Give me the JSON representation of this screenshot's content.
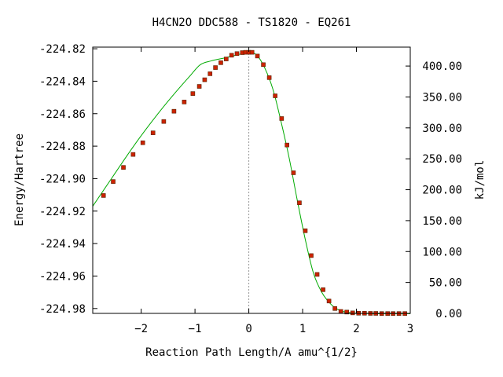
{
  "chart_data": {
    "type": "line",
    "title": "H4CN2O   DDC588 - TS1820 - EQ261",
    "xlabel": "Reaction Path Length/A amu^{1/2}",
    "ylabel": "Energy/Hartree",
    "y2label": "kJ/mol",
    "xlim": [
      -2.9,
      3.0
    ],
    "ylim": [
      -224.983,
      -224.819
    ],
    "y2lim": [
      0.0,
      430.6
    ],
    "grid": false,
    "x_ticks": [
      -2,
      -1,
      0,
      1,
      2,
      3
    ],
    "x_tick_labels": [
      "−2",
      "−1",
      "0",
      "1",
      "2",
      "3"
    ],
    "y_ticks": [
      -224.82,
      -224.84,
      -224.86,
      -224.88,
      -224.9,
      -224.92,
      -224.94,
      -224.96,
      -224.98
    ],
    "y_tick_labels": [
      "-224.82",
      "-224.84",
      "-224.86",
      "-224.88",
      "-224.90",
      "-224.92",
      "-224.94",
      "-224.96",
      "-224.98"
    ],
    "y2_ticks": [
      0,
      50,
      100,
      150,
      200,
      250,
      300,
      350,
      400
    ],
    "y2_tick_labels": [
      "0.00",
      "50.00",
      "100.00",
      "150.00",
      "200.00",
      "250.00",
      "300.00",
      "350.00",
      "400.00"
    ],
    "ts_marker_x": 0.0,
    "colors": {
      "line": "#00aa00",
      "points": "#cc2200",
      "point_border": "#552200",
      "marker": "#999999"
    },
    "curve": {
      "x": [
        -2.9,
        -2.7,
        -2.5,
        -2.3,
        -2.1,
        -1.9,
        -1.7,
        -1.5,
        -1.3,
        -1.1,
        -0.9,
        -0.7,
        -0.5,
        -0.3,
        -0.15,
        0.0,
        0.15,
        0.3,
        0.45,
        0.6,
        0.75,
        0.9,
        1.05,
        1.2,
        1.35,
        1.5,
        1.65,
        1.8,
        2.0,
        2.3,
        2.6,
        3.0
      ],
      "y": [
        -224.917,
        -224.9072,
        -224.8974,
        -224.8876,
        -224.8781,
        -224.8691,
        -224.8605,
        -224.8523,
        -224.8445,
        -224.837,
        -224.8298,
        -224.8275,
        -224.826,
        -224.8245,
        -224.8232,
        -224.8222,
        -224.824,
        -224.8321,
        -224.8452,
        -224.865,
        -224.8873,
        -224.9132,
        -224.9376,
        -224.9581,
        -224.9697,
        -224.9765,
        -224.9805,
        -224.9822,
        -224.9829,
        -224.9832,
        -224.9832,
        -224.9832
      ]
    },
    "points": {
      "x": [
        -2.7,
        -2.52,
        -2.33,
        -2.15,
        -1.97,
        -1.78,
        -1.58,
        -1.39,
        -1.2,
        -1.04,
        -0.92,
        -0.82,
        -0.72,
        -0.62,
        -0.52,
        -0.42,
        -0.32,
        -0.22,
        -0.12,
        -0.06,
        0.0,
        0.06,
        0.16,
        0.27,
        0.38,
        0.49,
        0.61,
        0.71,
        0.83,
        0.94,
        1.05,
        1.16,
        1.27,
        1.38,
        1.49,
        1.6,
        1.71,
        1.82,
        1.93,
        2.04,
        2.15,
        2.26,
        2.36,
        2.47,
        2.58,
        2.68,
        2.79,
        2.9
      ],
      "y": [
        -224.9104,
        -224.9018,
        -224.8931,
        -224.8851,
        -224.8779,
        -224.8718,
        -224.8648,
        -224.8585,
        -224.8528,
        -224.8476,
        -224.8432,
        -224.8391,
        -224.8354,
        -224.8316,
        -224.8286,
        -224.8263,
        -224.824,
        -224.823,
        -224.8224,
        -224.8222,
        -224.8222,
        -224.8222,
        -224.8245,
        -224.8298,
        -224.8378,
        -224.849,
        -224.863,
        -224.8793,
        -224.8964,
        -224.9149,
        -224.9321,
        -224.9474,
        -224.959,
        -224.9684,
        -224.9754,
        -224.98,
        -224.9818,
        -224.9822,
        -224.9827,
        -224.9829,
        -224.9829,
        -224.983,
        -224.983,
        -224.9831,
        -224.9831,
        -224.9831,
        -224.9831,
        -224.9831
      ]
    }
  }
}
